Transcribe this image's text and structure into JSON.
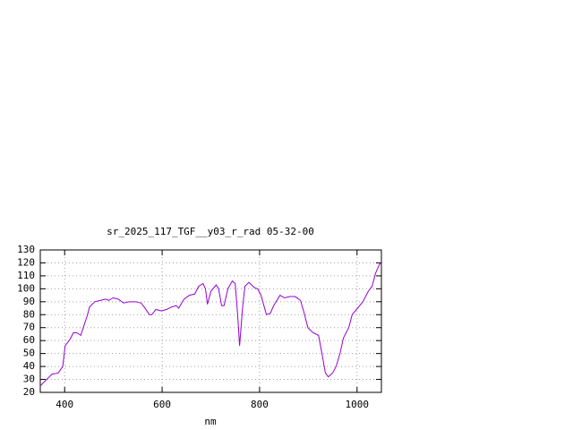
{
  "chart_data": {
    "type": "line",
    "title": "sr_2025_117_TGF__y03_r_rad 05-32-00",
    "x_label": "nm",
    "x": [
      350,
      363,
      374,
      387,
      396,
      401,
      411,
      418,
      425,
      433,
      440,
      447,
      451,
      462,
      473,
      484,
      491,
      499,
      510,
      521,
      533,
      546,
      557,
      565,
      574,
      579,
      587,
      598,
      609,
      620,
      629,
      634,
      645,
      656,
      667,
      675,
      684,
      689,
      693,
      700,
      711,
      716,
      722,
      727,
      735,
      744,
      750,
      755,
      759,
      765,
      770,
      778,
      789,
      796,
      803,
      814,
      822,
      829,
      842,
      851,
      862,
      873,
      884,
      891,
      899,
      910,
      921,
      928,
      935,
      941,
      950,
      957,
      965,
      972,
      983,
      990,
      1001,
      1012,
      1023,
      1031,
      1038,
      1045,
      1048
    ],
    "series": [
      {
        "name": "sr_2025_117_TGF__y03_r_rad",
        "color": "#9400d3",
        "values": [
          25,
          30,
          34,
          35,
          40,
          56,
          61,
          66,
          66,
          64,
          72,
          80,
          86,
          90,
          91,
          92,
          91,
          93,
          92,
          89,
          90,
          90,
          89,
          85,
          80,
          80,
          84,
          83,
          84,
          86,
          87,
          85,
          92,
          95,
          96,
          102,
          104,
          100,
          88,
          98,
          103,
          100,
          87,
          87,
          100,
          106,
          104,
          80,
          56,
          85,
          102,
          105,
          101,
          100,
          95,
          80,
          81,
          87,
          95,
          93,
          94,
          94,
          91,
          82,
          70,
          66,
          64,
          50,
          35,
          32,
          35,
          40,
          50,
          62,
          70,
          80,
          85,
          90,
          98,
          102,
          112,
          118,
          120
        ]
      }
    ],
    "xlim": [
      350,
      1050
    ],
    "xticks": [
      400,
      600,
      800,
      1000
    ],
    "ylim": [
      20,
      130
    ],
    "yticks": [
      20,
      30,
      40,
      50,
      60,
      70,
      80,
      90,
      100,
      110,
      120,
      130
    ],
    "grid": true
  }
}
